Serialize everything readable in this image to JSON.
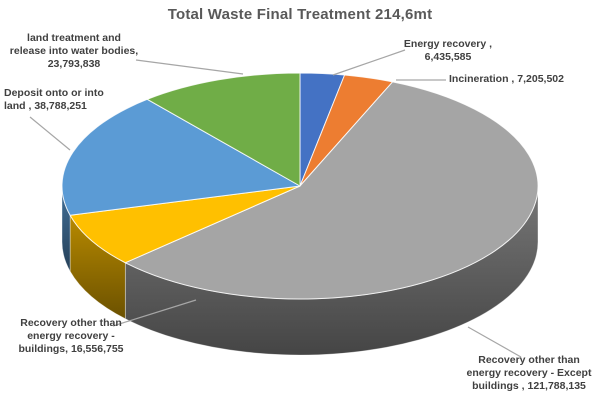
{
  "title": "Total Waste Final Treatment 214,6mt",
  "chart_data": {
    "type": "pie",
    "style": "3d",
    "title": "Total Waste Final Treatment 214,6mt",
    "start_angle_deg": 0,
    "direction": "clockwise",
    "legend": "none",
    "total": 214568066,
    "slices": [
      {
        "name": "Energy recovery",
        "value": 6435585,
        "label": "Energy recovery ,\n6,435,585",
        "color": "#4472C4"
      },
      {
        "name": "Incineration",
        "value": 7205502,
        "label": "Incineration , 7,205,502",
        "color": "#ED7D31"
      },
      {
        "name": "Recovery other than energy recovery - Except buildings",
        "value": 121788135,
        "label": "Recovery other than\nenergy recovery - Except\nbuildings , 121,788,135",
        "color": "#A5A5A5"
      },
      {
        "name": "Recovery other than energy recovery - buildings",
        "value": 16556755,
        "label": "Recovery other than\nenergy recovery -\nbuildings, 16,556,755",
        "color": "#FFC000"
      },
      {
        "name": "Deposit onto or into land",
        "value": 38788251,
        "label": "Deposit onto or into\nland , 38,788,251",
        "color": "#5B9BD5"
      },
      {
        "name": "land treatment and release into water bodies",
        "value": 23793838,
        "label": "land treatment and\nrelease into water bodies,\n23,793,838",
        "color": "#70AD47"
      }
    ],
    "leader_line_color": "#A6A6A6",
    "title_color": "#595959",
    "label_color": "#404040"
  }
}
